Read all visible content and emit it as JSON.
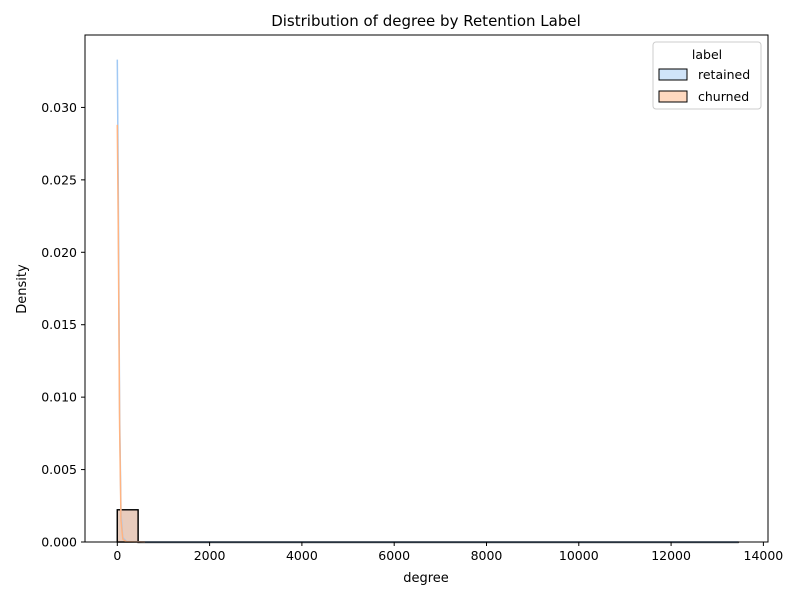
{
  "chart_data": {
    "type": "histogram",
    "title": "Distribution of degree by Retention Label",
    "xlabel": "degree",
    "ylabel": "Density",
    "xlim": [
      -700,
      14100
    ],
    "ylim": [
      0,
      0.035
    ],
    "xticks": [
      0,
      2000,
      4000,
      6000,
      8000,
      10000,
      12000,
      14000
    ],
    "yticks": [
      0.0,
      0.005,
      0.01,
      0.015,
      0.02,
      0.025,
      0.03
    ],
    "xtick_labels": [
      "0",
      "2000",
      "4000",
      "6000",
      "8000",
      "10000",
      "12000",
      "14000"
    ],
    "ytick_labels": [
      "0.000",
      "0.005",
      "0.010",
      "0.015",
      "0.020",
      "0.025",
      "0.030"
    ],
    "grid": false,
    "legend": {
      "title": "label",
      "placement": "top-right",
      "entries": [
        "retained",
        "churned"
      ]
    },
    "series": [
      {
        "name": "retained",
        "fill_color": "#a1c9f4",
        "line_color": "#a1c9f4",
        "bars": [
          {
            "x0": 0,
            "x1": 450,
            "density": 0.00222
          },
          {
            "x0": 450,
            "x1": 13450,
            "density": 1e-07
          }
        ],
        "kde": [
          [
            0,
            0.0333
          ],
          [
            20,
            0.025
          ],
          [
            50,
            0.009
          ],
          [
            80,
            0.002
          ],
          [
            120,
            0.0003
          ],
          [
            200,
            3e-05
          ],
          [
            600,
            0.0
          ],
          [
            13450,
            0.0
          ]
        ]
      },
      {
        "name": "churned",
        "fill_color": "#ffb482",
        "line_color": "#ffb482",
        "bars": [
          {
            "x0": 0,
            "x1": 450,
            "density": 0.00222
          }
        ],
        "kde": [
          [
            0,
            0.0288
          ],
          [
            20,
            0.022
          ],
          [
            50,
            0.008
          ],
          [
            80,
            0.0015
          ],
          [
            120,
            0.0002
          ],
          [
            200,
            2e-05
          ],
          [
            600,
            0.0
          ]
        ]
      }
    ]
  }
}
